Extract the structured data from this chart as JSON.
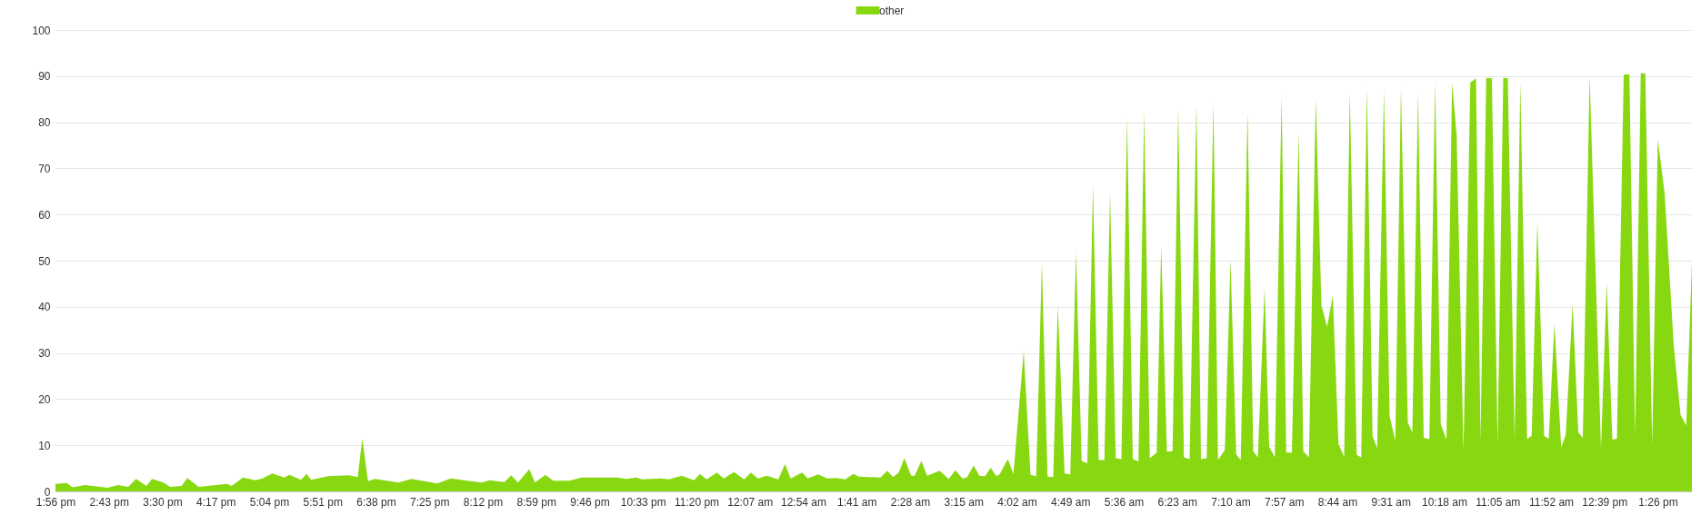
{
  "chart_data": {
    "type": "area",
    "legend": "top",
    "grid": "y",
    "ylim": [
      0,
      100
    ],
    "yticks": [
      0,
      10,
      20,
      30,
      40,
      50,
      60,
      70,
      80,
      90,
      100
    ],
    "xlim": [
      "--01-01T13:56",
      "--01-02T13:56"
    ],
    "xticks": [
      {
        "value": "--01-01T13:56",
        "label": "1:56 pm"
      },
      {
        "value": "--01-01T14:43",
        "label": "2:43 pm"
      },
      {
        "value": "--01-01T15:30",
        "label": "3:30 pm"
      },
      {
        "value": "--01-01T16:17",
        "label": "4:17 pm"
      },
      {
        "value": "--01-01T17:04",
        "label": "5:04 pm"
      },
      {
        "value": "--01-01T17:51",
        "label": "5:51 pm"
      },
      {
        "value": "--01-01T18:38",
        "label": "6:38 pm"
      },
      {
        "value": "--01-01T19:25",
        "label": "7:25 pm"
      },
      {
        "value": "--01-01T20:12",
        "label": "8:12 pm"
      },
      {
        "value": "--01-01T20:59",
        "label": "8:59 pm"
      },
      {
        "value": "--01-01T21:46",
        "label": "9:46 pm"
      },
      {
        "value": "--01-01T22:33",
        "label": "10:33 pm"
      },
      {
        "value": "--01-01T23:20",
        "label": "11:20 pm"
      },
      {
        "value": "--01-02T00:07",
        "label": "12:07 am"
      },
      {
        "value": "--01-02T00:54",
        "label": "12:54 am"
      },
      {
        "value": "--01-02T01:41",
        "label": "1:41 am"
      },
      {
        "value": "--01-02T02:28",
        "label": "2:28 am"
      },
      {
        "value": "--01-02T03:15",
        "label": "3:15 am"
      },
      {
        "value": "--01-02T04:02",
        "label": "4:02 am"
      },
      {
        "value": "--01-02T04:49",
        "label": "4:49 am"
      },
      {
        "value": "--01-02T05:36",
        "label": "5:36 am"
      },
      {
        "value": "--01-02T06:23",
        "label": "6:23 am"
      },
      {
        "value": "--01-02T07:10",
        "label": "7:10 am"
      },
      {
        "value": "--01-02T07:57",
        "label": "7:57 am"
      },
      {
        "value": "--01-02T08:44",
        "label": "8:44 am"
      },
      {
        "value": "--01-02T09:31",
        "label": "9:31 am"
      },
      {
        "value": "--01-02T10:18",
        "label": "10:18 am"
      },
      {
        "value": "--01-02T11:05",
        "label": "11:05 am"
      },
      {
        "value": "--01-02T11:52",
        "label": "11:52 am"
      },
      {
        "value": "--01-02T12:39",
        "label": "12:39 pm"
      },
      {
        "value": "--01-02T13:26",
        "label": "1:26 pm"
      }
    ],
    "x": [
      "--01-01T13:56",
      "--01-01T14:06",
      "--01-01T14:11",
      "--01-01T14:22",
      "--01-01T14:42",
      "--01-01T14:51",
      "--01-01T15:00",
      "--01-01T15:07",
      "--01-01T15:16",
      "--01-01T15:21",
      "--01-01T15:31",
      "--01-01T15:37",
      "--01-01T15:47",
      "--01-01T15:52",
      "--01-01T16:02",
      "--01-01T16:27",
      "--01-01T16:31",
      "--01-01T16:41",
      "--01-01T16:52",
      "--01-01T16:58",
      "--01-01T17:07",
      "--01-01T17:17",
      "--01-01T17:22",
      "--01-01T17:32",
      "--01-01T17:37",
      "--01-01T17:41",
      "--01-01T17:56",
      "--01-01T18:14",
      "--01-01T18:22",
      "--01-01T18:26",
      "--01-01T18:31",
      "--01-01T18:37",
      "--01-01T18:58",
      "--01-01T19:09",
      "--01-01T19:32",
      "--01-01T19:44",
      "--01-01T20:11",
      "--01-01T20:18",
      "--01-01T20:31",
      "--01-01T20:37",
      "--01-01T20:43",
      "--01-01T20:53",
      "--01-01T20:58",
      "--01-01T21:07",
      "--01-01T21:14",
      "--01-01T21:28",
      "--01-01T21:39",
      "--01-01T21:53",
      "--01-01T22:11",
      "--01-01T22:18",
      "--01-01T22:27",
      "--01-01T22:32",
      "--01-01T22:49",
      "--01-01T22:56",
      "--01-01T23:07",
      "--01-01T23:18",
      "--01-01T23:23",
      "--01-01T23:29",
      "--01-01T23:38",
      "--01-01T23:44",
      "--01-01T23:53",
      "--01-02T00:02",
      "--01-02T00:08",
      "--01-02T00:14",
      "--01-02T00:22",
      "--01-02T00:32",
      "--01-02T00:38",
      "--01-02T00:43",
      "--01-02T00:53",
      "--01-02T00:58",
      "--01-02T01:07",
      "--01-02T01:15",
      "--01-02T01:23",
      "--01-02T01:31",
      "--01-02T01:38",
      "--01-02T01:43",
      "--01-02T02:02",
      "--01-02T02:08",
      "--01-02T02:13",
      "--01-02T02:18",
      "--01-02T02:23",
      "--01-02T02:29",
      "--01-02T02:32",
      "--01-02T02:38",
      "--01-02T02:43",
      "--01-02T02:54",
      "--01-02T03:02",
      "--01-02T03:08",
      "--01-02T03:14",
      "--01-02T03:18",
      "--01-02T03:24",
      "--01-02T03:29",
      "--01-02T03:34",
      "--01-02T03:39",
      "--01-02T03:44",
      "--01-02T03:47",
      "--01-02T03:54",
      "--01-02T03:59",
      "--01-02T04:08",
      "--01-02T04:14",
      "--01-02T04:19",
      "--01-02T04:24",
      "--01-02T04:29",
      "--01-02T04:34",
      "--01-02T04:38",
      "--01-02T04:44",
      "--01-02T04:49",
      "--01-02T04:54",
      "--01-02T04:59",
      "--01-02T05:04",
      "--01-02T05:09",
      "--01-02T05:14",
      "--01-02T05:19",
      "--01-02T05:24",
      "--01-02T05:29",
      "--01-02T05:34",
      "--01-02T05:39",
      "--01-02T05:44",
      "--01-02T05:49",
      "--01-02T05:54",
      "--01-02T05:59",
      "--01-02T06:05",
      "--01-02T06:09",
      "--01-02T06:14",
      "--01-02T06:19",
      "--01-02T06:24",
      "--01-02T06:29",
      "--01-02T06:34",
      "--01-02T06:40",
      "--01-02T06:44",
      "--01-02T06:49",
      "--01-02T06:55",
      "--01-02T06:59",
      "--01-02T07:05",
      "--01-02T07:10",
      "--01-02T07:15",
      "--01-02T07:19",
      "--01-02T07:25",
      "--01-02T07:30",
      "--01-02T07:34",
      "--01-02T07:40",
      "--01-02T07:44",
      "--01-02T07:49",
      "--01-02T07:55",
      "--01-02T07:59",
      "--01-02T08:04",
      "--01-02T08:10",
      "--01-02T08:14",
      "--01-02T08:19",
      "--01-02T08:25",
      "--01-02T08:30",
      "--01-02T08:35",
      "--01-02T08:40",
      "--01-02T08:45",
      "--01-02T08:50",
      "--01-02T08:55",
      "--01-02T09:01",
      "--01-02T09:05",
      "--01-02T09:10",
      "--01-02T09:15",
      "--01-02T09:19",
      "--01-02T09:25",
      "--01-02T09:30",
      "--01-02T09:35",
      "--01-02T09:40",
      "--01-02T09:46",
      "--01-02T09:50",
      "--01-02T09:55",
      "--01-02T10:00",
      "--01-02T10:05",
      "--01-02T10:10",
      "--01-02T10:15",
      "--01-02T10:20",
      "--01-02T10:25",
      "--01-02T10:29",
      "--01-02T10:35",
      "--01-02T10:41",
      "--01-02T10:46",
      "--01-02T10:50",
      "--01-02T10:55",
      "--01-02T11:00",
      "--01-02T11:05",
      "--01-02T11:10",
      "--01-02T11:14",
      "--01-02T11:20",
      "--01-02T11:25",
      "--01-02T11:31",
      "--01-02T11:35",
      "--01-02T11:40",
      "--01-02T11:46",
      "--01-02T11:50",
      "--01-02T11:55",
      "--01-02T12:01",
      "--01-02T12:05",
      "--01-02T12:11",
      "--01-02T12:16",
      "--01-02T12:20",
      "--01-02T12:26",
      "--01-02T12:36",
      "--01-02T12:41",
      "--01-02T12:46",
      "--01-02T12:50",
      "--01-02T12:56",
      "--01-02T13:01",
      "--01-02T13:06",
      "--01-02T13:11",
      "--01-02T13:15",
      "--01-02T13:21",
      "--01-02T13:26",
      "--01-02T13:32",
      "--01-02T13:40",
      "--01-02T13:46",
      "--01-02T13:51",
      "--01-02T13:56"
    ],
    "series": [
      {
        "name": "other",
        "color": "#88d811",
        "values": [
          1.6,
          1.8,
          0.9,
          1.4,
          0.8,
          1.4,
          1.0,
          2.7,
          1.2,
          2.7,
          1.9,
          1.0,
          1.2,
          2.9,
          1.0,
          1.6,
          1.2,
          3.0,
          2.4,
          2.8,
          3.9,
          3.0,
          3.6,
          2.5,
          3.8,
          2.5,
          3.3,
          3.5,
          3.1,
          11.5,
          2.2,
          2.7,
          1.9,
          2.7,
          1.7,
          2.8,
          1.9,
          2.4,
          2.0,
          3.5,
          1.9,
          4.8,
          1.9,
          3.6,
          2.3,
          2.3,
          3.0,
          3.0,
          3.0,
          2.7,
          3.0,
          2.6,
          2.8,
          2.6,
          3.4,
          2.4,
          3.8,
          2.6,
          4.1,
          2.8,
          4.2,
          2.6,
          4.1,
          2.8,
          3.4,
          2.6,
          5.9,
          2.8,
          4.1,
          2.8,
          3.7,
          2.8,
          2.9,
          2.6,
          3.8,
          3.2,
          3.0,
          4.5,
          3.1,
          4.1,
          7.2,
          3.4,
          3.4,
          6.6,
          3.4,
          4.5,
          2.7,
          4.6,
          2.8,
          3.0,
          5.6,
          3.4,
          3.3,
          5.1,
          3.3,
          3.8,
          7.0,
          3.8,
          30.4,
          3.6,
          3.3,
          49.6,
          3.2,
          3.1,
          40.3,
          3.9,
          3.7,
          51.9,
          6.6,
          6.1,
          66.3,
          6.8,
          6.8,
          64.7,
          7.2,
          7.0,
          81.1,
          7.0,
          6.5,
          82.4,
          7.2,
          8.4,
          53.4,
          8.6,
          8.7,
          83.0,
          7.4,
          7.0,
          84.0,
          7.0,
          7.2,
          84.3,
          6.8,
          9.0,
          50.1,
          8.0,
          6.8,
          82.4,
          8.7,
          7.4,
          44.1,
          9.7,
          7.4,
          85.9,
          8.4,
          8.4,
          78.1,
          8.7,
          7.4,
          85.0,
          40.3,
          35.7,
          42.4,
          10.3,
          7.5,
          86.6,
          7.9,
          7.4,
          87.6,
          12.0,
          9.3,
          87.0,
          16.3,
          11.0,
          87.6,
          14.9,
          12.8,
          86.3,
          11.6,
          11.3,
          88.6,
          14.6,
          11.2,
          88.6,
          77.1,
          8.7,
          88.6,
          89.5,
          11.0,
          89.6,
          89.5,
          10.0,
          89.6,
          89.5,
          11.2,
          88.6,
          11.3,
          12.1,
          58.4,
          12.0,
          11.4,
          36.2,
          9.5,
          12.3,
          40.6,
          12.8,
          11.6,
          90.1,
          9.3,
          45.2,
          11.2,
          11.4,
          90.3,
          90.4,
          12.0,
          90.6,
          90.6,
          10.0,
          76.3,
          64.6,
          31.7,
          16.6,
          14.3,
          49.8
        ]
      }
    ]
  }
}
